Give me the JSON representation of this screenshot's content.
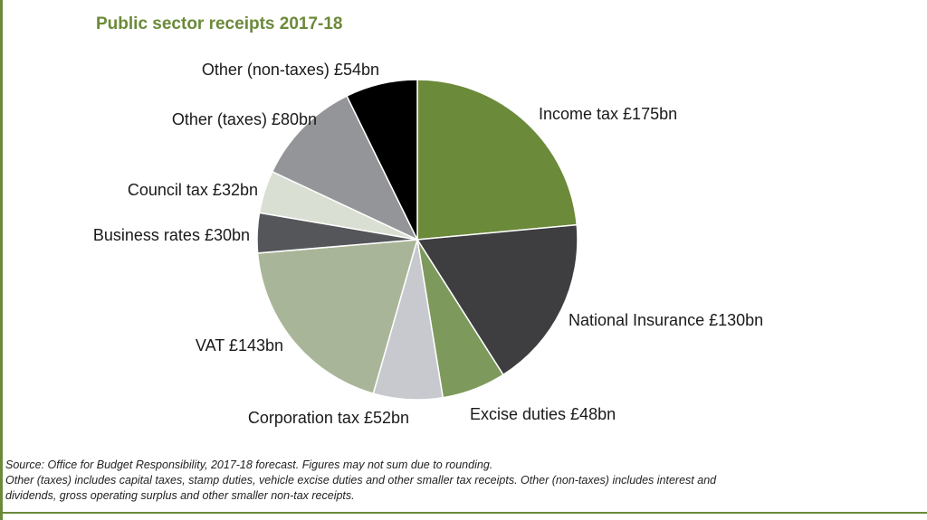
{
  "chart_data": {
    "type": "pie",
    "title": "Public sector receipts 2017-18",
    "categories": [
      "Income tax",
      "National Insurance",
      "Excise duties",
      "Corporation tax",
      "VAT",
      "Business rates",
      "Council tax",
      "Other (taxes)",
      "Other (non-taxes)"
    ],
    "values": [
      175,
      130,
      48,
      52,
      143,
      30,
      32,
      80,
      54
    ],
    "labels": [
      "Income tax £175bn",
      "National Insurance £130bn",
      "Excise duties £48bn",
      "Corporation tax £52bn",
      "VAT £143bn",
      "Business rates £30bn",
      "Council tax £32bn",
      "Other (taxes) £80bn",
      "Other (non-taxes) £54bn"
    ],
    "colors": [
      "#6b8a3a",
      "#3e3e40",
      "#7d9a5c",
      "#c8c9ce",
      "#a9b598",
      "#55565a",
      "#d9dfd3",
      "#949598",
      "#000000"
    ],
    "units": "£bn"
  },
  "footnote": {
    "line1": "Source: Office for Budget Responsibility, 2017-18 forecast. Figures may not sum due to rounding.",
    "line2": "Other (taxes) includes capital taxes, stamp duties, vehicle excise duties and other smaller tax receipts. Other (non-taxes) includes interest and",
    "line3": "dividends, gross operating surplus and other smaller non-tax receipts."
  }
}
